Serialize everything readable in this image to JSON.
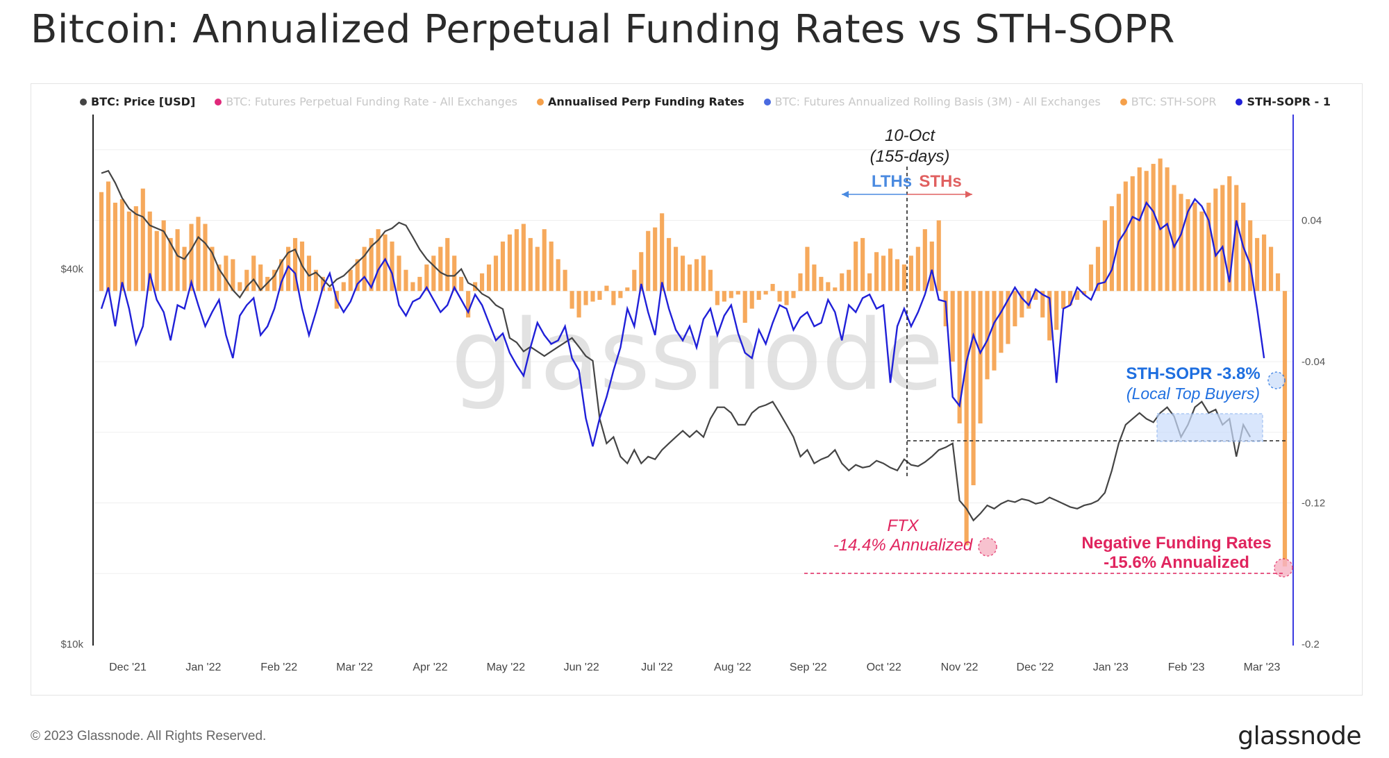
{
  "title": "Bitcoin: Annualized Perpetual Funding Rates vs STH-SOPR",
  "footer": {
    "copyright": "© 2023 Glassnode. All Rights Reserved.",
    "logo": "glassnode"
  },
  "watermark": "glassnode",
  "colors": {
    "price": "#444444",
    "funding": "#f5a04a",
    "sopr": "#2020d8",
    "axis_right": "#3a3ae0",
    "annotation_red": "#e0245e",
    "annotation_blue": "#1f6fe0",
    "lth": "#4a8ae0",
    "sth": "#e06060"
  },
  "chart_data": {
    "type": "bar",
    "title": "Bitcoin: Annualized Perpetual Funding Rates vs STH-SOPR",
    "legend": [
      {
        "label": "BTC: Price [USD]",
        "color": "#444444",
        "active": true
      },
      {
        "label": "BTC: Futures Perpetual Funding Rate - All Exchanges",
        "color": "#e0287a",
        "active": false
      },
      {
        "label": "Annualised Perp Funding Rates",
        "color": "#f5a04a",
        "active": true
      },
      {
        "label": "BTC: Futures Annualized Rolling Basis (3M) - All Exchanges",
        "color": "#4a6ae0",
        "active": false
      },
      {
        "label": "BTC: STH-SOPR",
        "color": "#f5a04a",
        "active": false
      },
      {
        "label": "STH-SOPR - 1",
        "color": "#2020d8",
        "active": true
      }
    ],
    "legend_placement": "top",
    "x_ticks": [
      "Dec '21",
      "Jan '22",
      "Feb '22",
      "Mar '22",
      "Apr '22",
      "May '22",
      "Jun '22",
      "Jul '22",
      "Aug '22",
      "Sep '22",
      "Oct '22",
      "Nov '22",
      "Dec '22",
      "Jan '23",
      "Feb '23",
      "Mar '23"
    ],
    "y_left": {
      "ticks": [
        "$40k",
        "$10k"
      ],
      "scale": "log",
      "range": [
        10000,
        69000
      ]
    },
    "y_right": {
      "ticks": [
        "0.04",
        "-0.04",
        "-0.12",
        "-0.2"
      ],
      "range": [
        -0.2,
        0.096
      ]
    },
    "grid": true,
    "price_usd": [
      57000,
      57500,
      55000,
      52000,
      50000,
      49000,
      48500,
      47000,
      46500,
      46000,
      44000,
      42000,
      41500,
      43000,
      45000,
      44000,
      42500,
      40000,
      38500,
      37000,
      36000,
      37500,
      38500,
      37000,
      38000,
      39000,
      41000,
      42500,
      43000,
      40500,
      39000,
      39500,
      38500,
      37500,
      38500,
      39000,
      40000,
      41000,
      42000,
      43500,
      44500,
      46000,
      46500,
      47500,
      47000,
      45000,
      43000,
      41500,
      40500,
      39500,
      39000,
      39000,
      40000,
      38000,
      37500,
      36500,
      36000,
      35000,
      34500,
      31000,
      30500,
      29500,
      30000,
      29500,
      29000,
      29500,
      30000,
      30500,
      31000,
      30000,
      29000,
      28500,
      23000,
      21000,
      21500,
      20000,
      19500,
      20500,
      19500,
      20000,
      19800,
      20500,
      21000,
      21500,
      22000,
      21500,
      22000,
      21500,
      23000,
      24000,
      24000,
      23500,
      22500,
      22500,
      23500,
      24000,
      24200,
      24500,
      23500,
      22500,
      21500,
      20000,
      20500,
      19500,
      19800,
      20000,
      20500,
      19500,
      19000,
      19400,
      19200,
      19300,
      19700,
      19500,
      19200,
      19000,
      19800,
      19400,
      19300,
      19600,
      20000,
      20500,
      20700,
      21000,
      17000,
      16500,
      15800,
      16200,
      16700,
      16500,
      16800,
      17000,
      16900,
      17100,
      17000,
      16800,
      16900,
      17200,
      17000,
      16800,
      16600,
      16500,
      16700,
      16800,
      17000,
      17500,
      19000,
      21000,
      22500,
      23000,
      23500,
      23000,
      22700,
      23500,
      24000,
      23200,
      21500,
      22500,
      24000,
      24500,
      23500,
      23800,
      22500,
      23000,
      20000,
      22500,
      21500
    ],
    "funding_annualized": [
      0.056,
      0.062,
      0.05,
      0.052,
      0.045,
      0.048,
      0.058,
      0.045,
      0.034,
      0.04,
      0.03,
      0.035,
      0.025,
      0.038,
      0.042,
      0.038,
      0.025,
      0.015,
      0.02,
      0.018,
      0.005,
      0.012,
      0.02,
      0.015,
      0.008,
      0.012,
      0.018,
      0.025,
      0.03,
      0.028,
      0.02,
      0.012,
      0.008,
      0.002,
      -0.01,
      0.005,
      0.012,
      0.018,
      0.025,
      0.03,
      0.035,
      0.032,
      0.028,
      0.02,
      0.012,
      0.005,
      0.008,
      0.015,
      0.02,
      0.025,
      0.03,
      0.02,
      0.008,
      -0.015,
      0.005,
      0.01,
      0.015,
      0.02,
      0.028,
      0.032,
      0.035,
      0.038,
      0.03,
      0.025,
      0.035,
      0.028,
      0.018,
      0.012,
      -0.01,
      -0.015,
      -0.008,
      -0.006,
      -0.005,
      0.003,
      -0.008,
      -0.004,
      0.002,
      0.012,
      0.022,
      0.034,
      0.036,
      0.044,
      0.03,
      0.025,
      0.02,
      0.015,
      0.018,
      0.02,
      0.012,
      -0.008,
      -0.006,
      -0.004,
      -0.002,
      -0.018,
      -0.01,
      -0.005,
      -0.002,
      0.004,
      -0.006,
      -0.008,
      -0.004,
      0.01,
      0.025,
      0.015,
      0.008,
      0.005,
      0.002,
      0.01,
      0.012,
      0.028,
      0.03,
      0.01,
      0.022,
      0.02,
      0.024,
      0.018,
      0.015,
      0.02,
      0.025,
      0.035,
      0.028,
      0.04,
      -0.02,
      -0.04,
      -0.075,
      -0.144,
      -0.11,
      -0.075,
      -0.05,
      -0.045,
      -0.035,
      -0.03,
      -0.02,
      -0.015,
      -0.01,
      -0.005,
      -0.015,
      -0.028,
      -0.022,
      -0.01,
      -0.008,
      -0.005,
      -0.002,
      0.015,
      0.025,
      0.04,
      0.048,
      0.055,
      0.062,
      0.065,
      0.07,
      0.068,
      0.072,
      0.075,
      0.07,
      0.06,
      0.055,
      0.052,
      0.05,
      0.045,
      0.05,
      0.058,
      0.06,
      0.065,
      0.06,
      0.05,
      0.04,
      0.03,
      0.032,
      0.025,
      0.01,
      -0.156
    ],
    "sth_sopr_minus_1": [
      -0.01,
      0.002,
      -0.02,
      0.005,
      -0.01,
      -0.03,
      -0.02,
      0.01,
      -0.005,
      -0.012,
      -0.028,
      -0.008,
      -0.01,
      0.005,
      -0.008,
      -0.02,
      -0.012,
      -0.005,
      -0.025,
      -0.038,
      -0.014,
      -0.008,
      -0.004,
      -0.025,
      -0.02,
      -0.01,
      0.005,
      0.014,
      0.01,
      -0.01,
      -0.025,
      -0.012,
      0.002,
      0.01,
      -0.005,
      -0.012,
      -0.006,
      0.004,
      0.008,
      0.002,
      0.012,
      0.018,
      0.01,
      -0.008,
      -0.014,
      -0.006,
      -0.004,
      0.002,
      -0.005,
      -0.012,
      -0.008,
      0.002,
      -0.005,
      -0.012,
      -0.002,
      -0.008,
      -0.018,
      -0.028,
      -0.024,
      -0.035,
      -0.042,
      -0.048,
      -0.032,
      -0.018,
      -0.025,
      -0.03,
      -0.028,
      -0.02,
      -0.038,
      -0.045,
      -0.072,
      -0.088,
      -0.072,
      -0.06,
      -0.045,
      -0.032,
      -0.01,
      -0.02,
      0.004,
      -0.012,
      -0.025,
      0.005,
      -0.01,
      -0.022,
      -0.028,
      -0.02,
      -0.032,
      -0.016,
      -0.01,
      -0.025,
      -0.014,
      -0.008,
      -0.024,
      -0.035,
      -0.038,
      -0.022,
      -0.03,
      -0.018,
      -0.008,
      -0.01,
      -0.022,
      -0.015,
      -0.012,
      -0.02,
      -0.018,
      -0.005,
      -0.012,
      -0.028,
      -0.008,
      -0.012,
      -0.004,
      -0.002,
      -0.01,
      -0.008,
      -0.052,
      -0.02,
      -0.01,
      -0.02,
      -0.012,
      -0.002,
      0.012,
      -0.005,
      -0.006,
      -0.06,
      -0.065,
      -0.04,
      -0.025,
      -0.035,
      -0.028,
      -0.018,
      -0.012,
      -0.005,
      0.002,
      -0.004,
      -0.008,
      0.001,
      -0.002,
      -0.004,
      -0.052,
      -0.01,
      -0.008,
      0.002,
      -0.002,
      -0.005,
      0.004,
      0.005,
      0.012,
      0.028,
      0.034,
      0.042,
      0.04,
      0.05,
      0.045,
      0.035,
      0.038,
      0.025,
      0.032,
      0.045,
      0.052,
      0.048,
      0.04,
      0.02,
      0.025,
      0.005,
      0.04,
      0.025,
      0.015,
      -0.01,
      -0.038
    ],
    "annotations": [
      {
        "text_line1": "10-Oct",
        "text_line2": "(155-days)"
      },
      {
        "text": "LTHs"
      },
      {
        "text": "STHs"
      },
      {
        "text_line1": "FTX",
        "text_line2": "-14.4% Annualized"
      },
      {
        "text_line1": "Negative Funding Rates",
        "text_line2": "-15.6% Annualized"
      },
      {
        "text_line1": "STH-SOPR -3.8%",
        "text_line2": "(Local Top Buyers)"
      }
    ]
  }
}
